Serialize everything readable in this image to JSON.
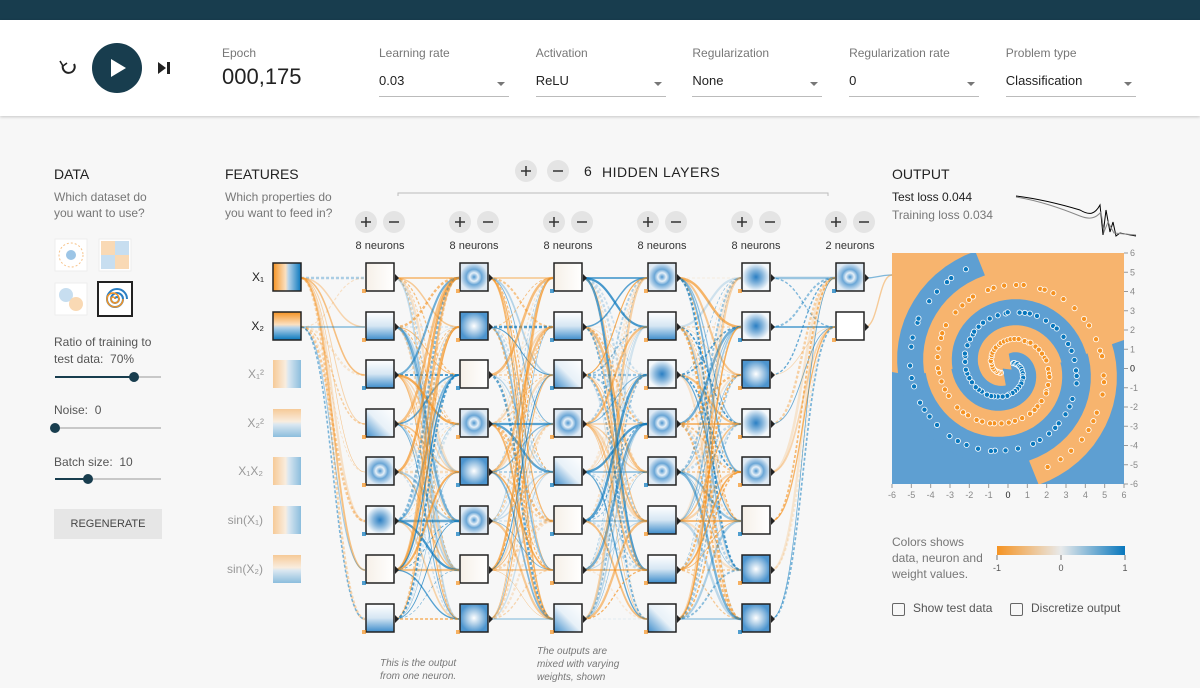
{
  "header": {
    "epoch": {
      "label": "Epoch",
      "value": "000,175"
    },
    "controls": [
      {
        "label": "Learning rate",
        "value": "0.03"
      },
      {
        "label": "Activation",
        "value": "ReLU"
      },
      {
        "label": "Regularization",
        "value": "None"
      },
      {
        "label": "Regularization rate",
        "value": "0"
      },
      {
        "label": "Problem type",
        "value": "Classification"
      }
    ]
  },
  "data_panel": {
    "title": "DATA",
    "question": [
      "Which dataset do",
      "you want to use?"
    ],
    "ratio": {
      "label": [
        "Ratio of training to",
        "test data:"
      ],
      "value": "70%"
    },
    "noise": {
      "label": "Noise:",
      "value": "0"
    },
    "batch": {
      "label": "Batch size:",
      "value": "10"
    },
    "button": "REGENERATE"
  },
  "features": {
    "title": "FEATURES",
    "question": [
      "Which properties do",
      "you want to feed in?"
    ],
    "items": [
      "X₁",
      "X₂",
      "X₁²",
      "X₂²",
      "X₁X₂",
      "sin(X₁)",
      "sin(X₂)"
    ]
  },
  "network": {
    "layer_count": "6",
    "layer_label": "HIDDEN LAYERS",
    "layers": [
      "8 neurons",
      "8 neurons",
      "8 neurons",
      "8 neurons",
      "8 neurons",
      "2 neurons"
    ],
    "annotations": [
      [
        "This is the output",
        "from one neuron."
      ],
      [
        "The outputs are",
        "mixed with varying",
        "weights, shown"
      ]
    ]
  },
  "output": {
    "title": "OUTPUT",
    "test_loss": {
      "label": "Test loss",
      "value": "0.044"
    },
    "training_loss": {
      "label": "Training loss",
      "value": "0.034"
    },
    "x_ticks": [
      -6,
      -5,
      -4,
      -3,
      -2,
      -1,
      0,
      1,
      2,
      3,
      4,
      5,
      6
    ],
    "y_ticks": [
      6,
      5,
      4,
      3,
      2,
      1,
      0,
      -1,
      -2,
      -3,
      -4,
      -5,
      -6
    ],
    "legend": {
      "text": [
        "Colors shows",
        "data, neuron and",
        "weight values."
      ],
      "ticks": [
        -1,
        0,
        1
      ]
    },
    "checkboxes": [
      "Show test data",
      "Discretize output"
    ]
  }
}
